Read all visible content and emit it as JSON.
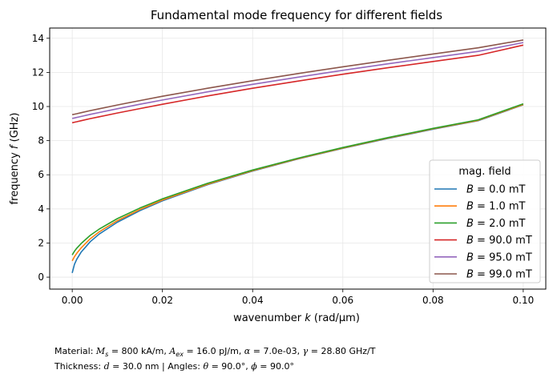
{
  "chart_data": {
    "type": "line",
    "title": "Fundamental mode frequency for different fields",
    "xlabel_text": "wavenumber ",
    "xlabel_var": "k",
    "xlabel_unit": " (rad/µm)",
    "ylabel_text": "frequency ",
    "ylabel_var": "f",
    "ylabel_unit": " (GHz)",
    "xlim": [
      -0.005,
      0.105
    ],
    "ylim": [
      -0.7,
      14.6
    ],
    "xticks": [
      0.0,
      0.02,
      0.04,
      0.06,
      0.08,
      0.1
    ],
    "xtick_labels": [
      "0.00",
      "0.02",
      "0.04",
      "0.06",
      "0.08",
      "0.10"
    ],
    "yticks": [
      0,
      2,
      4,
      6,
      8,
      10,
      12,
      14
    ],
    "ytick_labels": [
      "0",
      "2",
      "4",
      "6",
      "8",
      "10",
      "12",
      "14"
    ],
    "grid": true,
    "legend_title": "mag. field",
    "legend_placement": "lower-right",
    "x": [
      0.0,
      0.0005,
      0.001,
      0.002,
      0.004,
      0.006,
      0.01,
      0.015,
      0.02,
      0.03,
      0.04,
      0.05,
      0.06,
      0.07,
      0.08,
      0.09,
      0.1
    ],
    "series": [
      {
        "name": "B = 0.0 mT",
        "label_var": "B",
        "label_value": " = 0.0 mT",
        "color": "#1f77b4",
        "values": [
          0.25,
          0.75,
          1.05,
          1.48,
          2.08,
          2.53,
          3.22,
          3.9,
          4.47,
          5.42,
          6.22,
          6.92,
          7.55,
          8.13,
          8.67,
          9.17,
          10.1
        ]
      },
      {
        "name": "B = 1.0 mT",
        "label_var": "B",
        "label_value": " = 1.0 mT",
        "color": "#ff7f0e",
        "values": [
          0.95,
          1.2,
          1.4,
          1.72,
          2.25,
          2.66,
          3.31,
          3.96,
          4.52,
          5.45,
          6.24,
          6.94,
          7.57,
          8.15,
          8.69,
          9.19,
          10.12
        ]
      },
      {
        "name": "B = 2.0 mT",
        "label_var": "B",
        "label_value": " = 2.0 mT",
        "color": "#2ca02c",
        "values": [
          1.3,
          1.52,
          1.7,
          1.98,
          2.45,
          2.82,
          3.43,
          4.05,
          4.59,
          5.5,
          6.28,
          6.97,
          7.6,
          8.18,
          8.72,
          9.22,
          10.16
        ]
      },
      {
        "name": "B = 90.0 mT",
        "label_var": "B",
        "label_value": " = 90.0 mT",
        "color": "#d62728",
        "values": [
          9.05,
          9.08,
          9.11,
          9.17,
          9.29,
          9.4,
          9.62,
          9.88,
          10.13,
          10.62,
          11.07,
          11.49,
          11.89,
          12.27,
          12.64,
          13.0,
          13.6
        ]
      },
      {
        "name": "B = 95.0 mT",
        "label_var": "B",
        "label_value": " = 95.0 mT",
        "color": "#9467bd",
        "values": [
          9.3,
          9.33,
          9.36,
          9.42,
          9.54,
          9.65,
          9.87,
          10.13,
          10.38,
          10.86,
          11.3,
          11.72,
          12.12,
          12.5,
          12.87,
          13.23,
          13.75
        ]
      },
      {
        "name": "B = 99.0 mT",
        "label_var": "B",
        "label_value": " = 99.0 mT",
        "color": "#8c564b",
        "values": [
          9.52,
          9.55,
          9.58,
          9.64,
          9.76,
          9.87,
          10.09,
          10.35,
          10.6,
          11.07,
          11.51,
          11.93,
          12.33,
          12.71,
          13.08,
          13.44,
          13.9
        ]
      }
    ]
  },
  "footer": {
    "line1": {
      "material_label": "Material: ",
      "ms_var": "M",
      "ms_sub": "s",
      "ms_value": " = 800 kA/m, ",
      "aex_var": "A",
      "aex_sub": "ex",
      "aex_value": " = 16.0 pJ/m, ",
      "alpha_var": "α",
      "alpha_value": " = 7.0e-03, ",
      "gamma_var": "γ",
      "gamma_value": " = 28.80 GHz/T"
    },
    "line2": {
      "thickness_label": "Thickness: ",
      "d_var": "d",
      "d_value": " = 30.0 nm | Angles: ",
      "theta_var": "θ",
      "theta_value": " = 90.0°, ",
      "phi_var": "ϕ",
      "phi_value": " = 90.0°"
    }
  }
}
